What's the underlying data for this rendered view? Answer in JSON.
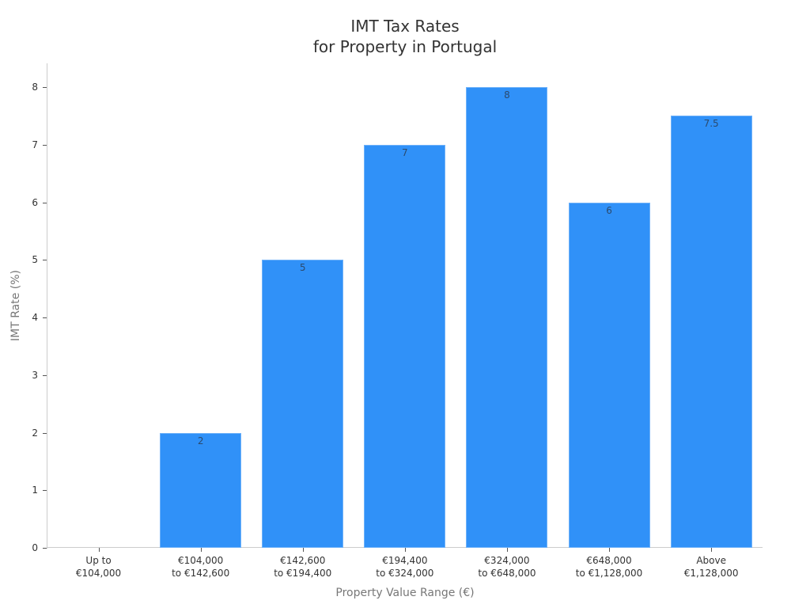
{
  "chart_data": {
    "type": "bar",
    "title": "IMT Tax Rates\nfor Property in Portugal",
    "title_lines": [
      "IMT Tax Rates",
      "for Property in Portugal"
    ],
    "xlabel": "Property Value Range (€)",
    "ylabel": "IMT Rate (%)",
    "categories": [
      "Up to €104,000",
      "€104,000 to €142,600",
      "€142,600 to €194,400",
      "€194,400 to €324,000",
      "€324,000 to €648,000",
      "€648,000 to €1,128,000",
      "Above €1,128,000"
    ],
    "category_lines": [
      [
        "Up to",
        "€104,000"
      ],
      [
        "€104,000",
        "to €142,600"
      ],
      [
        "€142,600",
        "to €194,400"
      ],
      [
        "€194,400",
        "to €324,000"
      ],
      [
        "€324,000",
        "to €648,000"
      ],
      [
        "€648,000",
        "to €1,128,000"
      ],
      [
        "Above",
        "€1,128,000"
      ]
    ],
    "values": [
      0,
      2,
      5,
      7,
      8,
      6,
      7.5
    ],
    "data_labels": [
      "",
      "2",
      "5",
      "7",
      "8",
      "6",
      "7.5"
    ],
    "ylim": [
      0,
      8.4
    ],
    "yticks": [
      0,
      1,
      2,
      3,
      4,
      5,
      6,
      7,
      8
    ],
    "grid": false,
    "legend": null,
    "bar_color": "#3091f8"
  }
}
